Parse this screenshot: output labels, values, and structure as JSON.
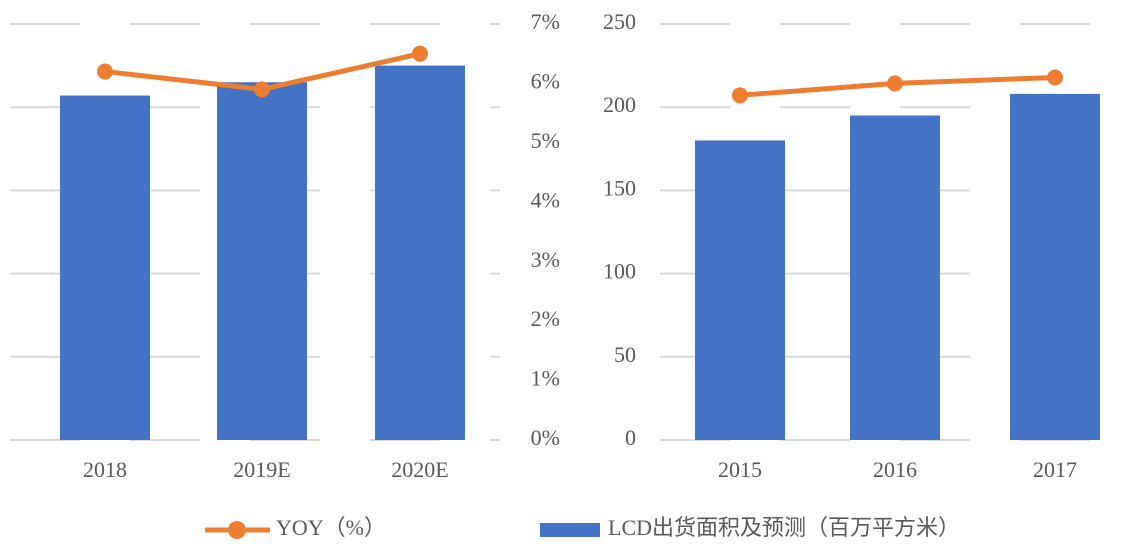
{
  "chart_data": {
    "type": "bar_line",
    "categories": [
      "2015",
      "2016",
      "2017",
      "2018",
      "2019E",
      "2020E"
    ],
    "series": [
      {
        "name": "LCD出货面积及预测（百万平方米）",
        "color": "#4472c4",
        "values": [
          180,
          195,
          208,
          207,
          215,
          225
        ]
      },
      {
        "name": "YOY（%）",
        "color": "#ed7d31",
        "axis": "y2",
        "values": [
          5.8,
          6.0,
          6.1,
          6.2,
          5.9,
          6.5
        ]
      }
    ],
    "ylim": [
      0,
      250
    ],
    "yticks": [
      0,
      50,
      100,
      150,
      200,
      250
    ],
    "y2lim": [
      0,
      7
    ],
    "y2ticks": [
      {
        "value": 0,
        "label": "0%"
      },
      {
        "value": 1,
        "label": "1%"
      },
      {
        "value": 2,
        "label": "2%"
      },
      {
        "value": 3,
        "label": "3%"
      },
      {
        "value": 4,
        "label": "4%"
      },
      {
        "value": 5,
        "label": "5%"
      },
      {
        "value": 6,
        "label": "6%"
      },
      {
        "value": 7,
        "label": "7%"
      }
    ],
    "grid": true
  }
}
